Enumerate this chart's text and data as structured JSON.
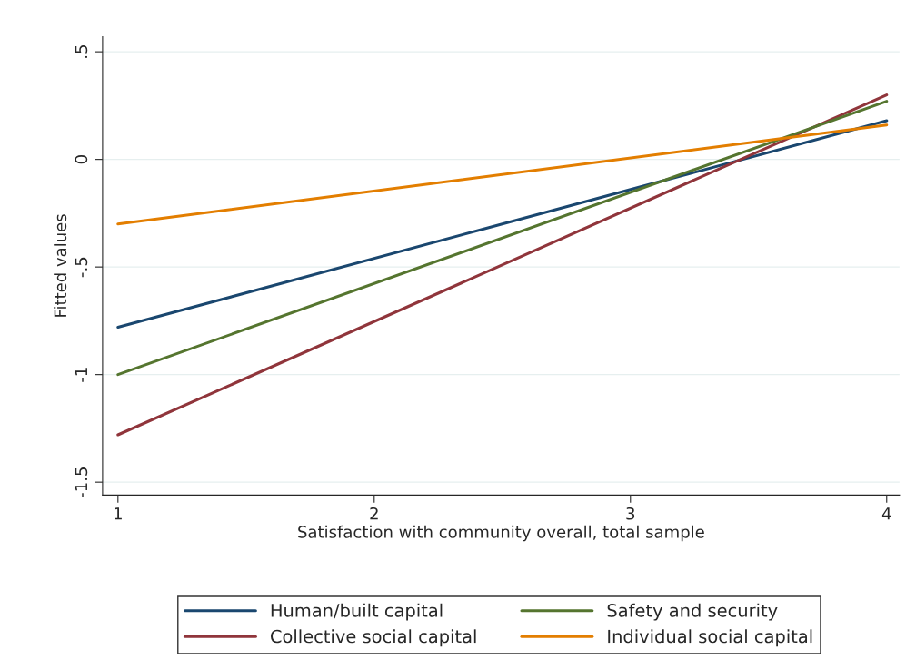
{
  "chart_data": {
    "type": "line",
    "xlabel": "Satisfaction with community overall, total sample",
    "ylabel": "Fitted values",
    "x": [
      1,
      4
    ],
    "series": [
      {
        "name": "Human/built capital",
        "color": "#1a476f",
        "values": [
          -0.78,
          0.18
        ]
      },
      {
        "name": "Collective social capital",
        "color": "#90353b",
        "values": [
          -1.28,
          0.3
        ]
      },
      {
        "name": "Safety and security",
        "color": "#55752f",
        "values": [
          -1.0,
          0.27
        ]
      },
      {
        "name": "Individual social capital",
        "color": "#e37e00",
        "values": [
          -0.3,
          0.16
        ]
      }
    ],
    "xlim": [
      0.94,
      4.05
    ],
    "ylim": [
      -1.56,
      0.57
    ],
    "xticks": [
      1,
      2,
      3,
      4
    ],
    "yticks": [
      {
        "value": 0.5,
        "label": ".5"
      },
      0,
      {
        "value": -0.5,
        "label": "-.5"
      },
      -1,
      {
        "value": -1.5,
        "label": "-1.5"
      }
    ],
    "grid": "y",
    "legend": "bottom",
    "marker": "none",
    "line_style": "solid"
  }
}
